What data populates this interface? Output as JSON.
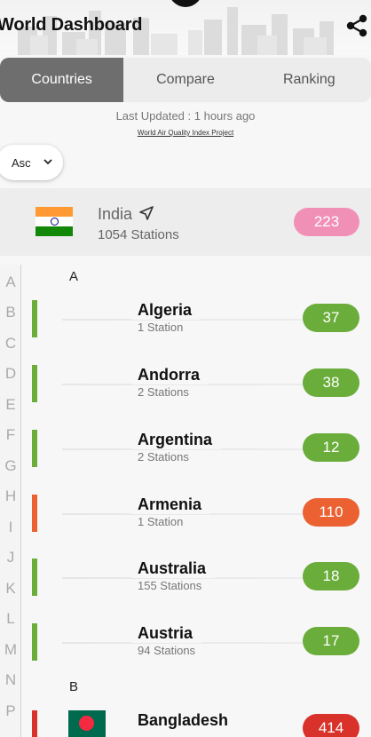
{
  "header": {
    "title": "World Dashboard",
    "share_icon": "share-icon"
  },
  "tabs": [
    {
      "label": "Countries",
      "active": true
    },
    {
      "label": "Compare",
      "active": false
    },
    {
      "label": "Ranking",
      "active": false
    }
  ],
  "info": {
    "last_updated": "Last Updated : 1 hours ago",
    "source": "World Air Quality Index Project"
  },
  "sort": {
    "selected": "Asc",
    "icon": "chevron-down-icon"
  },
  "home_country": {
    "name": "India",
    "stations": "1054 Stations",
    "aqi": "223",
    "aqi_color": "#f190b7",
    "icon": "location-arrow-icon"
  },
  "alphabet": [
    "A",
    "B",
    "C",
    "D",
    "E",
    "F",
    "G",
    "H",
    "I",
    "J",
    "K",
    "L",
    "M",
    "N",
    "P"
  ],
  "sections": [
    {
      "letter": "A",
      "countries": [
        {
          "name": "Algeria",
          "stations": "1 Station",
          "aqi": "37",
          "color": "#6aad3a"
        },
        {
          "name": "Andorra",
          "stations": "2 Stations",
          "aqi": "38",
          "color": "#6aad3a"
        },
        {
          "name": "Argentina",
          "stations": "2 Stations",
          "aqi": "12",
          "color": "#6aad3a"
        },
        {
          "name": "Armenia",
          "stations": "1 Station",
          "aqi": "110",
          "color": "#ec6132"
        },
        {
          "name": "Australia",
          "stations": "155 Stations",
          "aqi": "18",
          "color": "#6aad3a"
        },
        {
          "name": "Austria",
          "stations": "94 Stations",
          "aqi": "17",
          "color": "#6aad3a"
        }
      ]
    },
    {
      "letter": "B",
      "countries": [
        {
          "name": "Bangladesh",
          "stations": "",
          "aqi": "414",
          "color": "#d8322a"
        }
      ]
    }
  ]
}
